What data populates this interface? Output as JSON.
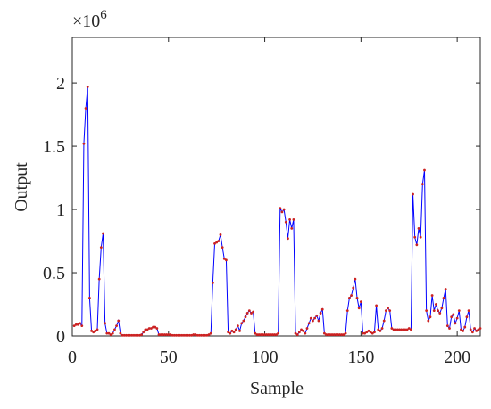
{
  "chart_data": {
    "type": "line",
    "xlabel": "Sample",
    "ylabel": "Output",
    "multiplier": "×10",
    "multiplier_exponent": "6",
    "x": [
      1,
      2,
      3,
      4,
      5,
      6,
      7,
      8,
      9,
      10,
      11,
      12,
      13,
      14,
      15,
      16,
      17,
      18,
      19,
      20,
      21,
      22,
      23,
      24,
      25,
      26,
      27,
      28,
      29,
      30,
      31,
      32,
      33,
      34,
      35,
      36,
      37,
      38,
      39,
      40,
      41,
      42,
      43,
      44,
      45,
      46,
      47,
      48,
      49,
      50,
      51,
      52,
      53,
      54,
      55,
      56,
      57,
      58,
      59,
      60,
      61,
      62,
      63,
      64,
      65,
      66,
      67,
      68,
      69,
      70,
      71,
      72,
      73,
      74,
      75,
      76,
      77,
      78,
      79,
      80,
      81,
      82,
      83,
      84,
      85,
      86,
      87,
      88,
      89,
      90,
      91,
      92,
      93,
      94,
      95,
      96,
      97,
      98,
      99,
      100,
      101,
      102,
      103,
      104,
      105,
      106,
      107,
      108,
      109,
      110,
      111,
      112,
      113,
      114,
      115,
      116,
      117,
      118,
      119,
      120,
      121,
      122,
      123,
      124,
      125,
      126,
      127,
      128,
      129,
      130,
      131,
      132,
      133,
      134,
      135,
      136,
      137,
      138,
      139,
      140,
      141,
      142,
      143,
      144,
      145,
      146,
      147,
      148,
      149,
      150,
      151,
      152,
      153,
      154,
      155,
      156,
      157,
      158,
      159,
      160,
      161,
      162,
      163,
      164,
      165,
      166,
      167,
      168,
      169,
      170,
      171,
      172,
      173,
      174,
      175,
      176,
      177,
      178,
      179,
      180,
      181,
      182,
      183,
      184,
      185,
      186,
      187,
      188,
      189,
      190,
      191,
      192,
      193,
      194,
      195,
      196,
      197,
      198,
      199,
      200,
      201,
      202,
      203,
      204,
      205,
      206,
      207,
      208,
      209,
      210,
      211,
      212
    ],
    "series": [
      {
        "color": "#0000ff",
        "marker_color": "#cc2222",
        "values": [
          0.08,
          0.09,
          0.09,
          0.1,
          0.08,
          1.52,
          1.8,
          1.97,
          0.3,
          0.04,
          0.03,
          0.04,
          0.05,
          0.45,
          0.7,
          0.81,
          0.1,
          0.02,
          0.02,
          0.01,
          0.02,
          0.05,
          0.08,
          0.12,
          0.02,
          0.005,
          0.005,
          0.005,
          0.005,
          0.005,
          0.005,
          0.005,
          0.005,
          0.005,
          0.005,
          0.01,
          0.03,
          0.05,
          0.05,
          0.06,
          0.06,
          0.07,
          0.07,
          0.06,
          0.01,
          0.01,
          0.01,
          0.01,
          0.01,
          0.01,
          0.01,
          0.005,
          0.005,
          0.005,
          0.005,
          0.005,
          0.005,
          0.005,
          0.005,
          0.005,
          0.005,
          0.005,
          0.01,
          0.01,
          0.005,
          0.005,
          0.005,
          0.005,
          0.005,
          0.005,
          0.01,
          0.02,
          0.42,
          0.73,
          0.74,
          0.75,
          0.8,
          0.7,
          0.61,
          0.6,
          0.03,
          0.02,
          0.04,
          0.03,
          0.05,
          0.08,
          0.04,
          0.1,
          0.12,
          0.15,
          0.18,
          0.2,
          0.18,
          0.19,
          0.02,
          0.01,
          0.01,
          0.01,
          0.01,
          0.01,
          0.01,
          0.01,
          0.01,
          0.01,
          0.01,
          0.01,
          0.02,
          1.01,
          0.98,
          1.0,
          0.9,
          0.77,
          0.92,
          0.85,
          0.92,
          0.02,
          0.01,
          0.03,
          0.05,
          0.04,
          0.02,
          0.06,
          0.1,
          0.14,
          0.12,
          0.14,
          0.16,
          0.12,
          0.18,
          0.21,
          0.02,
          0.01,
          0.01,
          0.01,
          0.01,
          0.01,
          0.01,
          0.01,
          0.01,
          0.01,
          0.01,
          0.02,
          0.2,
          0.3,
          0.32,
          0.38,
          0.45,
          0.3,
          0.22,
          0.27,
          0.02,
          0.02,
          0.03,
          0.04,
          0.03,
          0.02,
          0.03,
          0.24,
          0.05,
          0.04,
          0.06,
          0.12,
          0.2,
          0.22,
          0.2,
          0.06,
          0.05,
          0.05,
          0.05,
          0.05,
          0.05,
          0.05,
          0.05,
          0.05,
          0.06,
          0.05,
          1.12,
          0.78,
          0.72,
          0.85,
          0.78,
          1.2,
          1.31,
          0.2,
          0.12,
          0.15,
          0.32,
          0.2,
          0.25,
          0.2,
          0.18,
          0.22,
          0.3,
          0.37,
          0.08,
          0.06,
          0.15,
          0.17,
          0.1,
          0.14,
          0.2,
          0.05,
          0.04,
          0.07,
          0.15,
          0.2,
          0.05,
          0.03,
          0.06,
          0.04,
          0.05,
          0.06
        ]
      }
    ],
    "xlim": [
      0,
      212
    ],
    "xticks": [
      0,
      50,
      100,
      150,
      200
    ],
    "ylim": [
      0,
      2.36
    ],
    "yticks": [
      0,
      0.5,
      1,
      1.5,
      2
    ]
  }
}
